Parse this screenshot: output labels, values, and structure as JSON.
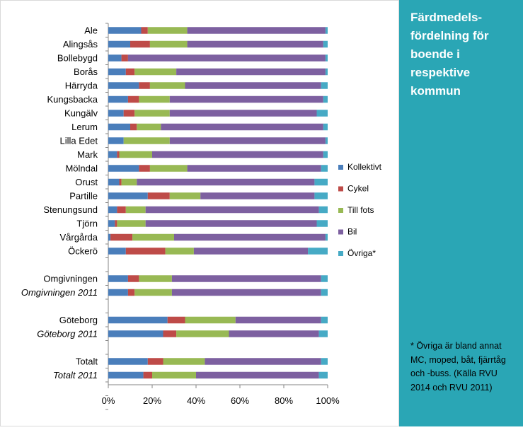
{
  "side_title": "Färdmedels-fördelning för boende i respektive kommun",
  "footnote": "* Övriga är bland annat MC, moped, båt, fjärrtåg och -buss. (Källa RVU 2014 och RVU 2011)",
  "chart_data": {
    "type": "bar",
    "orientation": "horizontal",
    "stacked": "percent",
    "title": "",
    "xlabel": "",
    "ylabel": "",
    "xlim": [
      0,
      100
    ],
    "x_ticks": [
      "0%",
      "20%",
      "40%",
      "60%",
      "80%",
      "100%"
    ],
    "grid": false,
    "legend_position": "right",
    "categories": [
      "Ale",
      "Alingsås",
      "Bollebygd",
      "Borås",
      "Härryda",
      "Kungsbacka",
      "Kungälv",
      "Lerum",
      "Lilla Edet",
      "Mark",
      "Mölndal",
      "Orust",
      "Partille",
      "Stenungsund",
      "Tjörn",
      "Vårgårda",
      "Öckerö",
      "Omgivningen",
      "Omgivningen 2011",
      "Göteborg",
      "Göteborg 2011",
      "Totalt",
      "Totalt 2011"
    ],
    "italic_categories": [
      "Omgivningen 2011",
      "Göteborg 2011",
      "Totalt 2011"
    ],
    "groups": [
      {
        "start": 0,
        "end": 16
      },
      {
        "start": 17,
        "end": 18
      },
      {
        "start": 19,
        "end": 20
      },
      {
        "start": 21,
        "end": 22
      }
    ],
    "series": [
      {
        "name": "Kollektivt",
        "color": "#4a7ebb",
        "values": [
          15,
          10,
          6,
          8,
          14,
          9,
          7,
          10,
          7,
          4,
          14,
          5,
          18,
          4,
          3,
          1,
          8,
          9,
          9,
          27,
          25,
          18,
          16
        ]
      },
      {
        "name": "Cykel",
        "color": "#be4b48",
        "values": [
          3,
          9,
          3,
          4,
          5,
          5,
          5,
          3,
          0,
          1,
          5,
          1,
          10,
          4,
          1,
          10,
          18,
          5,
          3,
          8,
          6,
          7,
          4
        ]
      },
      {
        "name": "Till fots",
        "color": "#98b954",
        "values": [
          18,
          17,
          0,
          19,
          16,
          14,
          16,
          11,
          21,
          15,
          17,
          7,
          14,
          9,
          13,
          19,
          13,
          15,
          17,
          23,
          24,
          19,
          20
        ]
      },
      {
        "name": "Bil",
        "color": "#7d60a0",
        "values": [
          63,
          62,
          90,
          68,
          62,
          70,
          67,
          74,
          71,
          78,
          61,
          81,
          52,
          79,
          78,
          69,
          52,
          68,
          68,
          39,
          41,
          53,
          56
        ]
      },
      {
        "name": "Övriga*",
        "color": "#46aac5",
        "values": [
          1,
          2,
          1,
          1,
          3,
          2,
          5,
          2,
          1,
          2,
          3,
          6,
          6,
          4,
          5,
          1,
          9,
          3,
          3,
          3,
          4,
          3,
          4
        ]
      }
    ]
  }
}
